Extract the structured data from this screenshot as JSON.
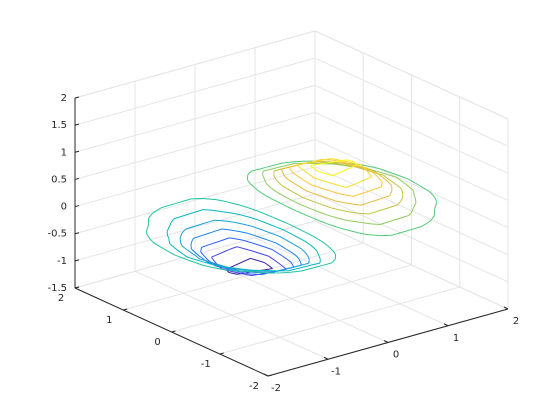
{
  "chart_data": {
    "type": "contour3",
    "x": [
      -2,
      -1.5,
      -1,
      -0.5,
      0,
      0.5,
      1,
      1.5,
      2
    ],
    "y": [
      -2,
      -1.5,
      -1,
      -0.5,
      0,
      0.5,
      1,
      1.5,
      2
    ],
    "z": [
      [
        -0.001,
        -0.006,
        -0.013,
        -0.014,
        0,
        0.014,
        0.013,
        0.006,
        0.001
      ],
      [
        -0.008,
        -0.033,
        -0.078,
        -0.082,
        0,
        0.082,
        0.078,
        0.033,
        0.008
      ],
      [
        -0.027,
        -0.116,
        -0.271,
        -0.287,
        0,
        0.287,
        0.271,
        0.116,
        0.027
      ],
      [
        -0.057,
        -0.246,
        -0.573,
        -0.607,
        0,
        0.607,
        0.573,
        0.246,
        0.057
      ],
      [
        -0.073,
        -0.316,
        -0.736,
        -0.779,
        0,
        0.779,
        0.736,
        0.316,
        0.073
      ],
      [
        -0.057,
        -0.246,
        -0.573,
        -0.607,
        0,
        0.607,
        0.573,
        0.246,
        0.057
      ],
      [
        -0.027,
        -0.116,
        -0.271,
        -0.287,
        0,
        0.287,
        0.271,
        0.116,
        0.027
      ],
      [
        -0.008,
        -0.033,
        -0.078,
        -0.082,
        0,
        0.082,
        0.078,
        0.033,
        0.008
      ],
      [
        -0.001,
        -0.006,
        -0.013,
        -0.014,
        0,
        0.014,
        0.013,
        0.006,
        0.001
      ]
    ],
    "levels": [
      -0.7,
      -0.6,
      -0.5,
      -0.4,
      -0.3,
      -0.2,
      -0.1,
      0.1,
      0.2,
      0.3,
      0.4,
      0.5,
      0.6,
      0.7
    ],
    "colors": [
      "#3e26a8",
      "#4743e4",
      "#2f63f8",
      "#1b83ea",
      "#1ba0d7",
      "#08b6c2",
      "#1fc4a4",
      "#52cc7a",
      "#8ecc5e",
      "#c1c440",
      "#e7ba3b",
      "#fbc43a",
      "#f5dd27",
      "#f9fb15"
    ],
    "xlim": [
      -2,
      2
    ],
    "ylim": [
      -2,
      2
    ],
    "zlim": [
      -1.5,
      2
    ],
    "xticks": [
      -2,
      -1,
      0,
      1,
      2
    ],
    "yticks": [
      -2,
      -1,
      0,
      1,
      2
    ],
    "zticks": [
      -1.5,
      -1,
      -0.5,
      0,
      0.5,
      1,
      1.5,
      2
    ],
    "grid": true
  }
}
